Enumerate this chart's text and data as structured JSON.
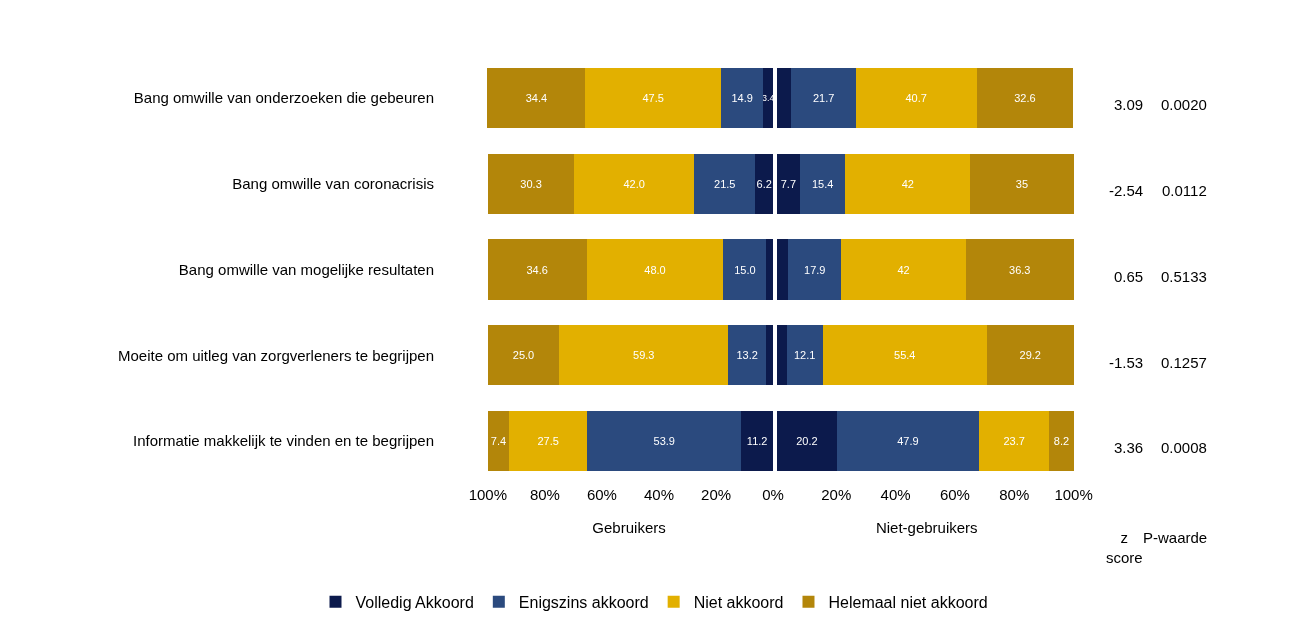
{
  "chart_data": [
    {
      "type": "bar",
      "orientation": "horizontal",
      "stacked": true,
      "xlabel": "Gebruikers",
      "categories": [
        "Bang omwille van onderzoeken die gebeuren",
        "Bang omwille van coronacrisis",
        "Bang omwille van mogelijke resultaten",
        "Moeite om uitleg van zorgverleners te begrijpen",
        "Informatie makkelijk te vinden en te begrijpen"
      ],
      "series": [
        {
          "name": "Volledig Akkoord",
          "color": "#0c1a4c",
          "values": [
            3.4,
            6.2,
            2.4,
            2.5,
            11.2
          ],
          "value_labels": [
            "3.4",
            "6.2",
            null,
            null,
            "11.2"
          ]
        },
        {
          "name": "Enigszins akkoord",
          "color": "#2b4a7e",
          "values": [
            14.9,
            21.5,
            15.0,
            13.2,
            53.9
          ],
          "value_labels": [
            "14.9",
            "21.5",
            "15.0",
            "13.2",
            "53.9"
          ]
        },
        {
          "name": "Niet akkoord",
          "color": "#e2b000",
          "values": [
            47.5,
            42.0,
            48.0,
            59.3,
            27.5
          ],
          "value_labels": [
            "47.5",
            "42.0",
            "48.0",
            "59.3",
            "27.5"
          ]
        },
        {
          "name": "Helemaal niet akkoord",
          "color": "#b3860a",
          "values": [
            34.4,
            30.3,
            34.6,
            25.0,
            7.4
          ],
          "value_labels": [
            "34.4",
            "30.3",
            "34.6",
            "25.0",
            "7.4"
          ]
        }
      ],
      "xlim": [
        101,
        0
      ],
      "xticks": [
        {
          "value": 100,
          "label": "100%"
        },
        {
          "value": 80,
          "label": "80%"
        },
        {
          "value": 60,
          "label": "60%"
        },
        {
          "value": 40,
          "label": "40%"
        },
        {
          "value": 20,
          "label": "20%"
        },
        {
          "value": 0,
          "label": "0%"
        }
      ],
      "legend": "bottom"
    },
    {
      "type": "bar",
      "orientation": "horizontal",
      "stacked": true,
      "xlabel": "Niet-gebruikers",
      "tick_labels": "x",
      "categories": [
        "Bang omwille van onderzoeken die gebeuren",
        "Bang omwille van coronacrisis",
        "Bang omwille van mogelijke resultaten",
        "Moeite om uitleg van zorgverleners te begrijpen",
        "Informatie makkelijk te vinden en te begrijpen"
      ],
      "series": [
        {
          "name": "Volledig Akkoord",
          "color": "#0c1a4c",
          "values": [
            4.9,
            7.7,
            3.8,
            3.3,
            20.2
          ],
          "value_labels": [
            null,
            "7.7",
            null,
            null,
            "20.2"
          ]
        },
        {
          "name": "Enigszins akkoord",
          "color": "#2b4a7e",
          "values": [
            21.7,
            15.4,
            17.9,
            12.1,
            47.9
          ],
          "value_labels": [
            "21.7",
            "15.4",
            "17.9",
            "12.1",
            "47.9"
          ]
        },
        {
          "name": "Niet akkoord",
          "color": "#e2b000",
          "values": [
            40.7,
            42,
            42,
            55.4,
            23.7
          ],
          "value_labels": [
            "40.7",
            "42",
            "42",
            "55.4",
            "23.7"
          ]
        },
        {
          "name": "Helemaal niet akkoord",
          "color": "#b3860a",
          "values": [
            32.6,
            35,
            36.3,
            29.2,
            8.2
          ],
          "value_labels": [
            "32.6",
            "35",
            "36.3",
            "29.2",
            "8.2"
          ]
        }
      ],
      "xlim": [
        0,
        101
      ],
      "xticks": [
        {
          "value": 20,
          "label": "20%"
        },
        {
          "value": 40,
          "label": "40%"
        },
        {
          "value": 60,
          "label": "60%"
        },
        {
          "value": 80,
          "label": "80%"
        },
        {
          "value": 100,
          "label": "100%"
        }
      ],
      "annotations": [
        "3.09",
        "0.0020",
        "-2.54",
        "0.0112",
        "0.65",
        "0.5133",
        "-1.53",
        "0.1257",
        "3.36",
        "0.0008",
        "z\nscore",
        "P-waarde"
      ]
    }
  ]
}
